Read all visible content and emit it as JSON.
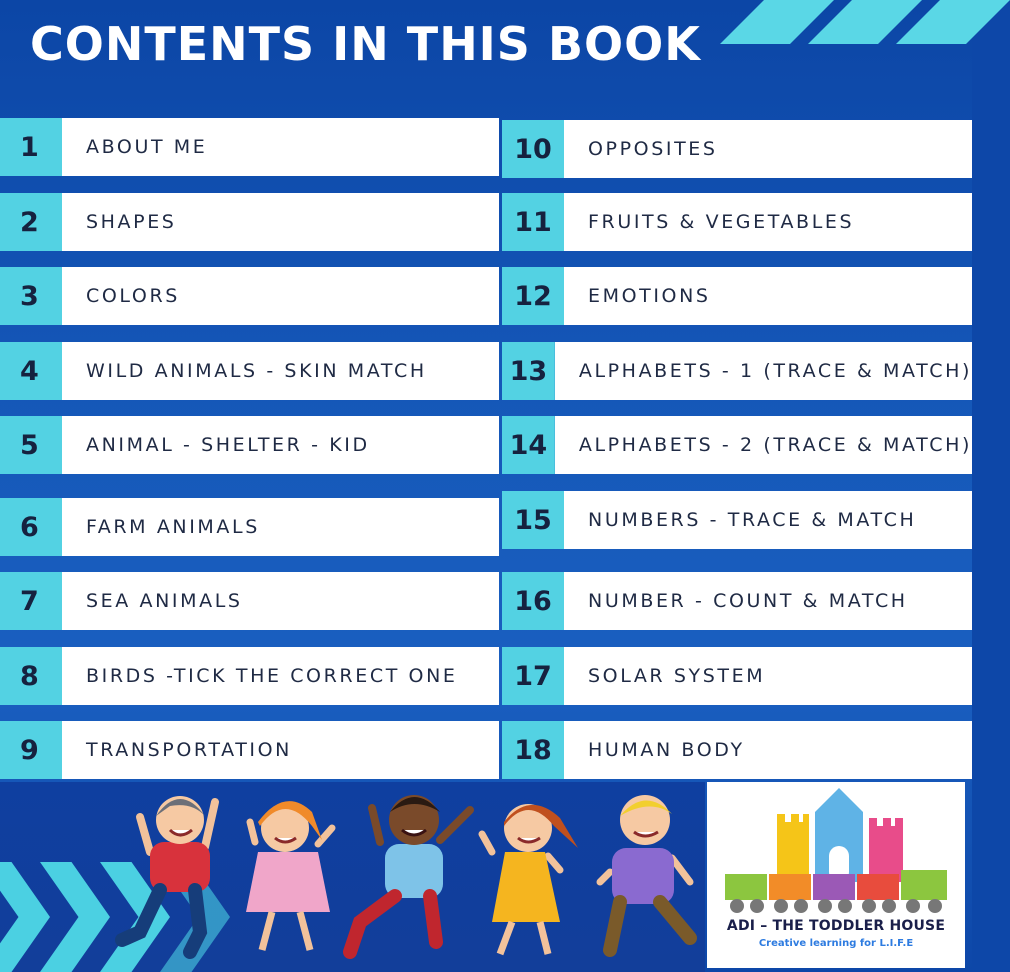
{
  "title": "CONTENTS IN THIS BOOK",
  "left_items": [
    {
      "num": "1",
      "label": "ABOUT ME"
    },
    {
      "num": "2",
      "label": "SHAPES"
    },
    {
      "num": "3",
      "label": "COLORS"
    },
    {
      "num": "4",
      "label": "WILD ANIMALS - SKIN MATCH"
    },
    {
      "num": "5",
      "label": "ANIMAL - SHELTER - KID"
    },
    {
      "num": "6",
      "label": "FARM ANIMALS"
    },
    {
      "num": "7",
      "label": "SEA ANIMALS"
    },
    {
      "num": "8",
      "label": "BIRDS -TICK THE CORRECT ONE"
    },
    {
      "num": "9",
      "label": "TRANSPORTATION"
    }
  ],
  "right_items": [
    {
      "num": "10",
      "label": "OPPOSITES"
    },
    {
      "num": "11",
      "label": "FRUITS & VEGETABLES"
    },
    {
      "num": "12",
      "label": "EMOTIONS"
    },
    {
      "num": "13",
      "label": "ALPHABETS - 1 (TRACE & MATCH)"
    },
    {
      "num": "14",
      "label": "ALPHABETS - 2 (TRACE & MATCH)"
    },
    {
      "num": "15",
      "label": "NUMBERS - TRACE & MATCH"
    },
    {
      "num": "16",
      "label": "NUMBER - COUNT & MATCH"
    },
    {
      "num": "17",
      "label": "SOLAR SYSTEM"
    },
    {
      "num": "18",
      "label": "HUMAN BODY"
    }
  ],
  "logo": {
    "name": "ADI – THE TODDLER HOUSE",
    "tagline": "Creative learning for L.I.F.E"
  },
  "colors": {
    "background": "#0d47a8",
    "accent": "#53d2e3",
    "row_bg": "#ffffff",
    "text": "#1f2a44"
  }
}
